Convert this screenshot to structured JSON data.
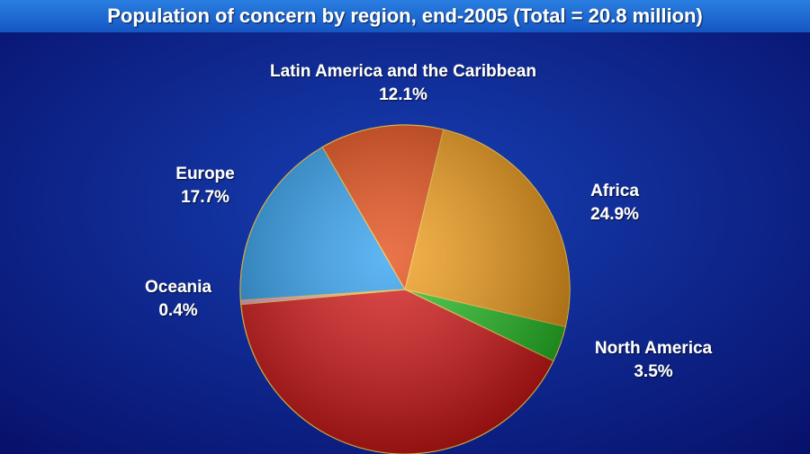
{
  "chart_data": {
    "type": "pie",
    "title": "Population of concern by region, end-2005 (Total = 20.8 million)",
    "categories": [
      "Africa",
      "North America",
      null,
      "Oceania",
      "Europe",
      "Latin America and the Caribbean"
    ],
    "values": [
      24.9,
      3.5,
      41.4,
      0.4,
      17.7,
      12.1
    ],
    "value_labels": [
      "24.9%",
      "3.5%",
      null,
      "0.4%",
      "17.7%",
      "12.1%"
    ],
    "colors": [
      "#f29a12",
      "#1fbf1f",
      "#d41010",
      "#e39ae6",
      "#2a9ef0",
      "#e4460e"
    ]
  }
}
